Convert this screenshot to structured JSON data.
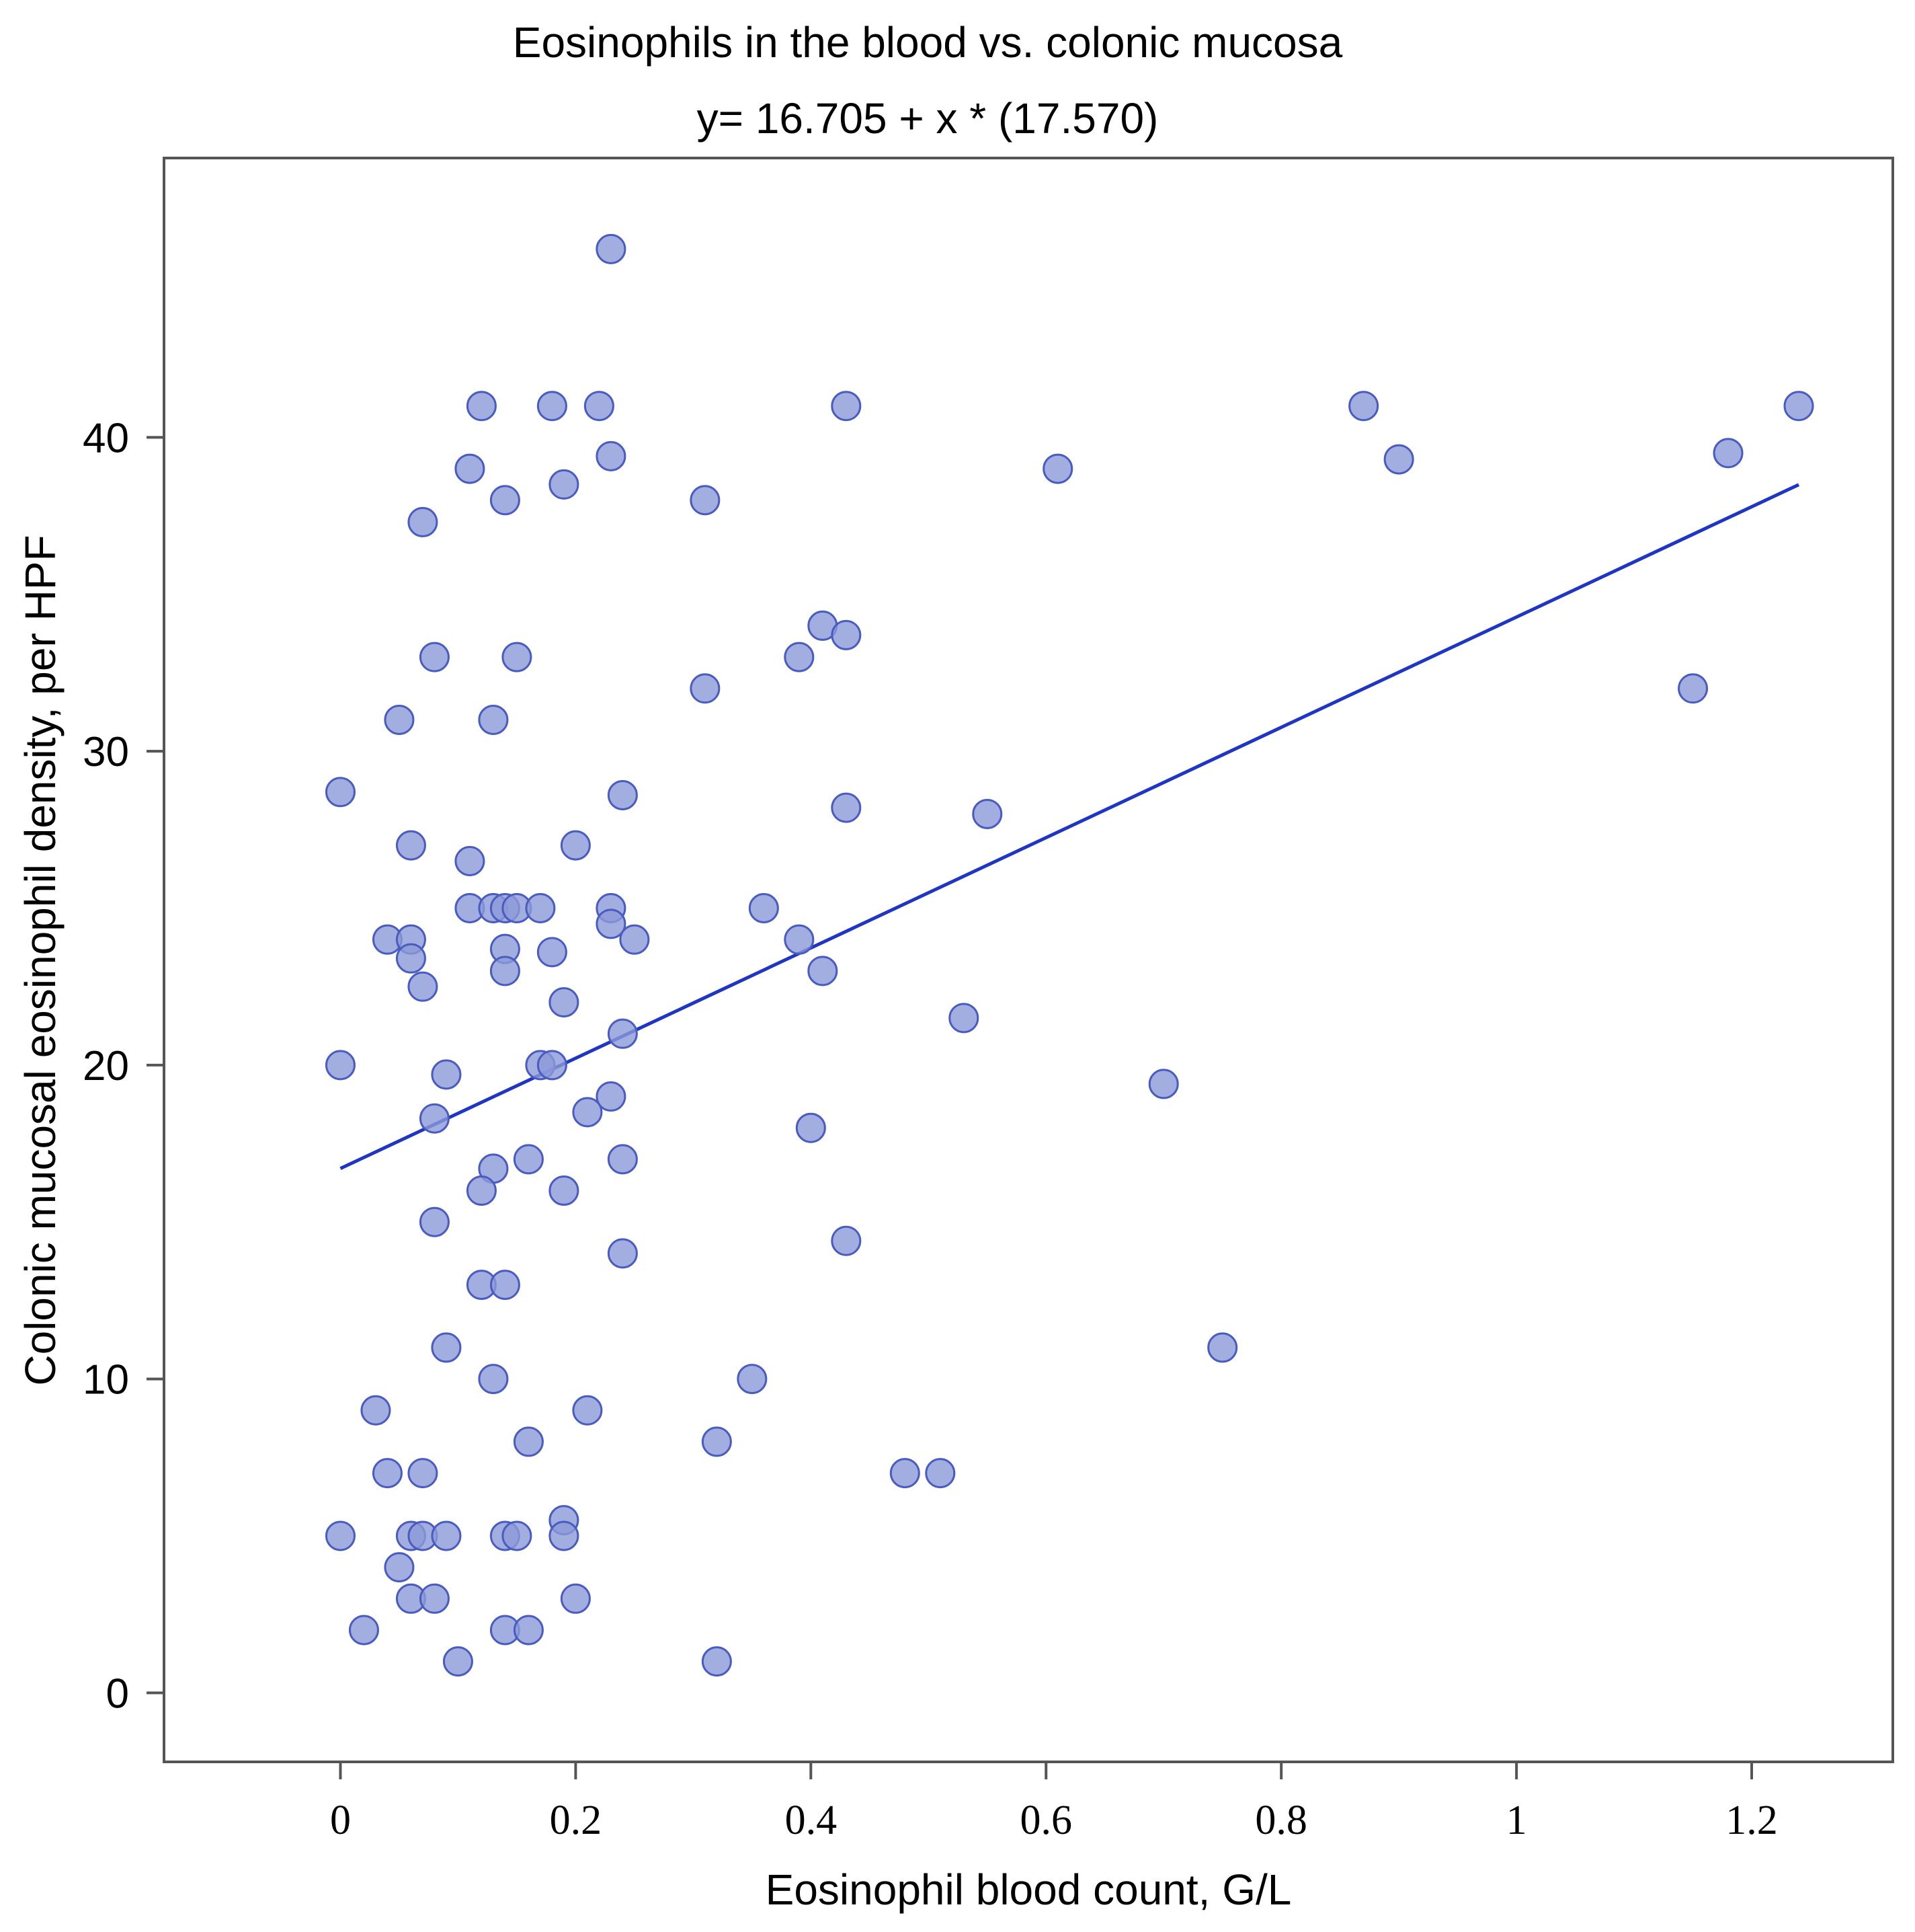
{
  "chart_data": {
    "type": "scatter",
    "title": "Eosinophils in the blood vs. colonic mucosa",
    "subtitle": "y= 16.705 + x * (17.570)",
    "xlabel": "Eosinophil blood count, G/L",
    "ylabel": "Colonic mucosal eosinophil density, per HPF",
    "xlim": [
      -0.15,
      1.32
    ],
    "ylim": [
      -2.2,
      48.9
    ],
    "xticks": [
      {
        "value": 0,
        "label": "0"
      },
      {
        "value": 0.2,
        "label": "0.2"
      },
      {
        "value": 0.4,
        "label": "0.4"
      },
      {
        "value": 0.6,
        "label": "0.6"
      },
      {
        "value": 0.8,
        "label": "0.8"
      },
      {
        "value": 1,
        "label": "1"
      },
      {
        "value": 1.2,
        "label": "1.2"
      }
    ],
    "yticks": [
      {
        "value": 0,
        "label": "0"
      },
      {
        "value": 10,
        "label": "10"
      },
      {
        "value": 20,
        "label": "20"
      },
      {
        "value": 30,
        "label": "30"
      },
      {
        "value": 40,
        "label": "40"
      }
    ],
    "regression": {
      "intercept": 16.705,
      "slope": 17.57,
      "x_range": [
        0,
        1.24
      ]
    },
    "colors": {
      "point_fill": "#8c9ad8",
      "point_stroke": "#4a5cc0",
      "line": "#1f35c4"
    },
    "points": [
      {
        "x": 0.23,
        "y": 46
      },
      {
        "x": 0.12,
        "y": 41
      },
      {
        "x": 0.18,
        "y": 41
      },
      {
        "x": 0.22,
        "y": 41
      },
      {
        "x": 0.43,
        "y": 41
      },
      {
        "x": 0.87,
        "y": 41
      },
      {
        "x": 1.24,
        "y": 41
      },
      {
        "x": 0.23,
        "y": 39.4
      },
      {
        "x": 0.11,
        "y": 39
      },
      {
        "x": 0.61,
        "y": 39
      },
      {
        "x": 0.9,
        "y": 39.3
      },
      {
        "x": 1.18,
        "y": 39.5
      },
      {
        "x": 0.19,
        "y": 38.5
      },
      {
        "x": 0.14,
        "y": 38
      },
      {
        "x": 0.31,
        "y": 38
      },
      {
        "x": 0.07,
        "y": 37.3
      },
      {
        "x": 0.41,
        "y": 34
      },
      {
        "x": 0.43,
        "y": 33.7
      },
      {
        "x": 0.08,
        "y": 33
      },
      {
        "x": 0.15,
        "y": 33
      },
      {
        "x": 0.39,
        "y": 33
      },
      {
        "x": 0.31,
        "y": 32
      },
      {
        "x": 1.15,
        "y": 32
      },
      {
        "x": 0.05,
        "y": 31
      },
      {
        "x": 0.13,
        "y": 31
      },
      {
        "x": 0,
        "y": 28.7
      },
      {
        "x": 0.24,
        "y": 28.6
      },
      {
        "x": 0.43,
        "y": 28.2
      },
      {
        "x": 0.55,
        "y": 28
      },
      {
        "x": 0.06,
        "y": 27
      },
      {
        "x": 0.2,
        "y": 27
      },
      {
        "x": 0.11,
        "y": 26.5
      },
      {
        "x": 0.11,
        "y": 25
      },
      {
        "x": 0.13,
        "y": 25
      },
      {
        "x": 0.14,
        "y": 25
      },
      {
        "x": 0.15,
        "y": 25
      },
      {
        "x": 0.17,
        "y": 25
      },
      {
        "x": 0.23,
        "y": 25
      },
      {
        "x": 0.36,
        "y": 25
      },
      {
        "x": 0.23,
        "y": 24.5
      },
      {
        "x": 0.04,
        "y": 24
      },
      {
        "x": 0.06,
        "y": 24
      },
      {
        "x": 0.25,
        "y": 24
      },
      {
        "x": 0.39,
        "y": 24
      },
      {
        "x": 0.14,
        "y": 23.7
      },
      {
        "x": 0.18,
        "y": 23.6
      },
      {
        "x": 0.06,
        "y": 23.4
      },
      {
        "x": 0.14,
        "y": 23
      },
      {
        "x": 0.41,
        "y": 23
      },
      {
        "x": 0.07,
        "y": 22.5
      },
      {
        "x": 0.19,
        "y": 22
      },
      {
        "x": 0.53,
        "y": 21.5
      },
      {
        "x": 0.24,
        "y": 21
      },
      {
        "x": 0,
        "y": 20
      },
      {
        "x": 0.17,
        "y": 20
      },
      {
        "x": 0.18,
        "y": 20
      },
      {
        "x": 0.09,
        "y": 19.7
      },
      {
        "x": 0.7,
        "y": 19.4
      },
      {
        "x": 0.23,
        "y": 19
      },
      {
        "x": 0.21,
        "y": 18.5
      },
      {
        "x": 0.08,
        "y": 18.3
      },
      {
        "x": 0.4,
        "y": 18
      },
      {
        "x": 0.24,
        "y": 17
      },
      {
        "x": 0.16,
        "y": 17
      },
      {
        "x": 0.13,
        "y": 16.7
      },
      {
        "x": 0.12,
        "y": 16
      },
      {
        "x": 0.19,
        "y": 16
      },
      {
        "x": 0.08,
        "y": 15
      },
      {
        "x": 0.43,
        "y": 14.4
      },
      {
        "x": 0.24,
        "y": 14
      },
      {
        "x": 0.12,
        "y": 13
      },
      {
        "x": 0.14,
        "y": 13
      },
      {
        "x": 0.09,
        "y": 11
      },
      {
        "x": 0.75,
        "y": 11
      },
      {
        "x": 0.13,
        "y": 10
      },
      {
        "x": 0.35,
        "y": 10
      },
      {
        "x": 0.03,
        "y": 9
      },
      {
        "x": 0.21,
        "y": 9
      },
      {
        "x": 0.16,
        "y": 8
      },
      {
        "x": 0.32,
        "y": 8
      },
      {
        "x": 0.04,
        "y": 7
      },
      {
        "x": 0.07,
        "y": 7
      },
      {
        "x": 0.48,
        "y": 7
      },
      {
        "x": 0.51,
        "y": 7
      },
      {
        "x": 0.19,
        "y": 5.5
      },
      {
        "x": 0,
        "y": 5
      },
      {
        "x": 0.06,
        "y": 5
      },
      {
        "x": 0.07,
        "y": 5
      },
      {
        "x": 0.09,
        "y": 5
      },
      {
        "x": 0.14,
        "y": 5
      },
      {
        "x": 0.15,
        "y": 5
      },
      {
        "x": 0.19,
        "y": 5
      },
      {
        "x": 0.05,
        "y": 4
      },
      {
        "x": 0.06,
        "y": 3
      },
      {
        "x": 0.08,
        "y": 3
      },
      {
        "x": 0.2,
        "y": 3
      },
      {
        "x": 0.02,
        "y": 2
      },
      {
        "x": 0.14,
        "y": 2
      },
      {
        "x": 0.16,
        "y": 2
      },
      {
        "x": 0.1,
        "y": 1
      },
      {
        "x": 0.32,
        "y": 1
      }
    ]
  }
}
